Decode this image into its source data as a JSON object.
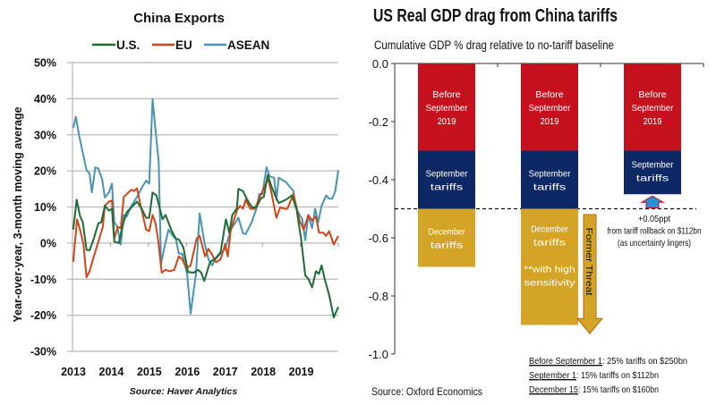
{
  "chart_data": [
    {
      "type": "line",
      "title": "China Exports",
      "ylabel": "Year-over-year, 3-month moving average",
      "xlabel": "",
      "source": "Source: Haver Analytics",
      "xlim": [
        2013,
        2020
      ],
      "ylim": [
        -30,
        50
      ],
      "yticks": [
        "50%",
        "40%",
        "30%",
        "20%",
        "10%",
        "0%",
        "-10%",
        "-20%",
        "-30%"
      ],
      "ytick_values": [
        50,
        40,
        30,
        20,
        10,
        0,
        -10,
        -20,
        -30
      ],
      "xticks": [
        "2013",
        "2014",
        "2015",
        "2016",
        "2017",
        "2018",
        "2019"
      ],
      "xtick_values": [
        2013,
        2014,
        2015,
        2016,
        2017,
        2018,
        2019
      ],
      "grid": true,
      "legend": "top",
      "series": [
        {
          "name": "U.S.",
          "color": "#1e6b35",
          "points": [
            [
              2013.02,
              3.7
            ],
            [
              2013.11,
              12
            ],
            [
              2013.2,
              7.4
            ],
            [
              2013.27,
              5.8
            ],
            [
              2013.37,
              -1.9
            ],
            [
              2013.45,
              -2
            ],
            [
              2013.56,
              1.2
            ],
            [
              2013.68,
              5.5
            ],
            [
              2013.76,
              5.8
            ],
            [
              2013.85,
              10.3
            ],
            [
              2013.96,
              9
            ],
            [
              2014.04,
              9.5
            ],
            [
              2014.1,
              0.4
            ],
            [
              2014.22,
              0
            ],
            [
              2014.31,
              4.5
            ],
            [
              2014.43,
              8.6
            ],
            [
              2014.55,
              9.9
            ],
            [
              2014.7,
              11.5
            ],
            [
              2014.82,
              9.5
            ],
            [
              2014.94,
              7
            ],
            [
              2015.02,
              7
            ],
            [
              2015.11,
              14
            ],
            [
              2015.21,
              13.2
            ],
            [
              2015.37,
              6.6
            ],
            [
              2015.45,
              7.8
            ],
            [
              2015.6,
              3.7
            ],
            [
              2015.72,
              1.2
            ],
            [
              2015.8,
              1
            ],
            [
              2015.92,
              -1.2
            ],
            [
              2016.04,
              -8
            ],
            [
              2016.19,
              -8.2
            ],
            [
              2016.31,
              -7.4
            ],
            [
              2016.39,
              -8.2
            ],
            [
              2016.47,
              -10.5
            ],
            [
              2016.62,
              -5.3
            ],
            [
              2016.78,
              -4.1
            ],
            [
              2016.9,
              -2.5
            ],
            [
              2017.04,
              6.6
            ],
            [
              2017.13,
              2.9
            ],
            [
              2017.21,
              7.8
            ],
            [
              2017.33,
              9.6
            ],
            [
              2017.37,
              15
            ],
            [
              2017.49,
              14.4
            ],
            [
              2017.6,
              12
            ],
            [
              2017.72,
              10
            ],
            [
              2017.84,
              9.9
            ],
            [
              2017.96,
              12.3
            ],
            [
              2018.04,
              12.8
            ],
            [
              2018.14,
              18.9
            ],
            [
              2018.23,
              16
            ],
            [
              2018.35,
              12.8
            ],
            [
              2018.43,
              11.1
            ],
            [
              2018.47,
              11.3
            ],
            [
              2018.62,
              12
            ],
            [
              2018.78,
              13.2
            ],
            [
              2018.9,
              9.5
            ],
            [
              2019.02,
              1.2
            ],
            [
              2019.13,
              -9
            ],
            [
              2019.21,
              -9.9
            ],
            [
              2019.31,
              -12.3
            ],
            [
              2019.41,
              -7.8
            ],
            [
              2019.49,
              -8.5
            ],
            [
              2019.56,
              -6.2
            ],
            [
              2019.64,
              -9.9
            ],
            [
              2019.76,
              -14.4
            ],
            [
              2019.88,
              -20.6
            ],
            [
              2020.0,
              -17.7
            ]
          ]
        },
        {
          "name": "EU",
          "color": "#d0461a",
          "points": [
            [
              2013.02,
              -5.2
            ],
            [
              2013.12,
              6.6
            ],
            [
              2013.21,
              3.3
            ],
            [
              2013.29,
              -0.4
            ],
            [
              2013.37,
              -9.5
            ],
            [
              2013.45,
              -7.8
            ],
            [
              2013.56,
              -3.7
            ],
            [
              2013.68,
              0.4
            ],
            [
              2013.8,
              4.5
            ],
            [
              2013.85,
              10.3
            ],
            [
              2013.96,
              11.5
            ],
            [
              2014.04,
              11.8
            ],
            [
              2014.1,
              1.2
            ],
            [
              2014.19,
              4.5
            ],
            [
              2014.27,
              4.1
            ],
            [
              2014.35,
              12.8
            ],
            [
              2014.47,
              14
            ],
            [
              2014.55,
              14.8
            ],
            [
              2014.62,
              14.4
            ],
            [
              2014.7,
              15.2
            ],
            [
              2014.78,
              11.1
            ],
            [
              2014.94,
              3.7
            ],
            [
              2015.02,
              3.3
            ],
            [
              2015.11,
              7.8
            ],
            [
              2015.19,
              5.3
            ],
            [
              2015.25,
              1.2
            ],
            [
              2015.35,
              -8.2
            ],
            [
              2015.45,
              -7.4
            ],
            [
              2015.56,
              -7.8
            ],
            [
              2015.68,
              -7.4
            ],
            [
              2015.8,
              -3.7
            ],
            [
              2015.89,
              -4.5
            ],
            [
              2016.0,
              -7
            ],
            [
              2016.11,
              -6.2
            ],
            [
              2016.27,
              1.2
            ],
            [
              2016.35,
              2
            ],
            [
              2016.49,
              -3.7
            ],
            [
              2016.58,
              -1.6
            ],
            [
              2016.66,
              -2.9
            ],
            [
              2016.78,
              -5.3
            ],
            [
              2016.9,
              -4.5
            ],
            [
              2017.02,
              -0.4
            ],
            [
              2017.09,
              -3.7
            ],
            [
              2017.17,
              3.7
            ],
            [
              2017.33,
              9
            ],
            [
              2017.41,
              10.3
            ],
            [
              2017.49,
              9.5
            ],
            [
              2017.56,
              12
            ],
            [
              2017.68,
              9.5
            ],
            [
              2017.8,
              9.5
            ],
            [
              2017.92,
              12.3
            ],
            [
              2018.07,
              16
            ],
            [
              2018.15,
              17.7
            ],
            [
              2018.23,
              14.4
            ],
            [
              2018.37,
              7
            ],
            [
              2018.47,
              9.9
            ],
            [
              2018.58,
              9.5
            ],
            [
              2018.66,
              9.5
            ],
            [
              2018.82,
              13.6
            ],
            [
              2018.98,
              6.2
            ],
            [
              2019.09,
              3.7
            ],
            [
              2019.21,
              7.8
            ],
            [
              2019.31,
              6.2
            ],
            [
              2019.41,
              7.4
            ],
            [
              2019.49,
              2.9
            ],
            [
              2019.6,
              2.9
            ],
            [
              2019.68,
              2
            ],
            [
              2019.76,
              3.3
            ],
            [
              2019.88,
              -0.4
            ],
            [
              2020.0,
              2
            ]
          ]
        },
        {
          "name": "ASEAN",
          "color": "#4a93b3",
          "points": [
            [
              2013.02,
              31.9
            ],
            [
              2013.09,
              35
            ],
            [
              2013.17,
              30
            ],
            [
              2013.37,
              20.2
            ],
            [
              2013.45,
              19.3
            ],
            [
              2013.51,
              14
            ],
            [
              2013.6,
              21
            ],
            [
              2013.68,
              20.6
            ],
            [
              2013.78,
              17.7
            ],
            [
              2013.85,
              12.6
            ],
            [
              2013.96,
              14
            ],
            [
              2014.04,
              16.5
            ],
            [
              2014.1,
              5.8
            ],
            [
              2014.18,
              4.5
            ],
            [
              2014.27,
              -0.4
            ],
            [
              2014.35,
              7.8
            ],
            [
              2014.43,
              7.4
            ],
            [
              2014.55,
              10.3
            ],
            [
              2014.7,
              12.8
            ],
            [
              2014.82,
              15.2
            ],
            [
              2014.94,
              17.3
            ],
            [
              2015.02,
              16.5
            ],
            [
              2015.11,
              39.9
            ],
            [
              2015.19,
              30.9
            ],
            [
              2015.27,
              22.6
            ],
            [
              2015.33,
              -5.8
            ],
            [
              2015.42,
              -1.2
            ],
            [
              2015.53,
              3.7
            ],
            [
              2015.64,
              2
            ],
            [
              2015.72,
              1.2
            ],
            [
              2015.8,
              -2.9
            ],
            [
              2015.89,
              -2.9
            ],
            [
              2016.02,
              -8.6
            ],
            [
              2016.11,
              -19.5
            ],
            [
              2016.25,
              -8.6
            ],
            [
              2016.35,
              8.2
            ],
            [
              2016.47,
              0.4
            ],
            [
              2016.58,
              -4.5
            ],
            [
              2016.68,
              -6.2
            ],
            [
              2016.76,
              -4.5
            ],
            [
              2016.9,
              -2.9
            ],
            [
              2017.02,
              -1.6
            ],
            [
              2017.17,
              3.7
            ],
            [
              2017.37,
              7
            ],
            [
              2017.49,
              2.7
            ],
            [
              2017.56,
              2.5
            ],
            [
              2017.72,
              5.8
            ],
            [
              2017.84,
              9.5
            ],
            [
              2017.92,
              13.6
            ],
            [
              2018.0,
              13.6
            ],
            [
              2018.11,
              21
            ],
            [
              2018.19,
              18.5
            ],
            [
              2018.31,
              18.1
            ],
            [
              2018.37,
              12
            ],
            [
              2018.43,
              18.1
            ],
            [
              2018.62,
              16.9
            ],
            [
              2018.82,
              14.4
            ],
            [
              2018.86,
              10.3
            ],
            [
              2018.98,
              7.8
            ],
            [
              2019.05,
              6.6
            ],
            [
              2019.13,
              0.8
            ],
            [
              2019.21,
              7.8
            ],
            [
              2019.31,
              4.1
            ],
            [
              2019.39,
              9.5
            ],
            [
              2019.47,
              5.8
            ],
            [
              2019.56,
              10.3
            ],
            [
              2019.68,
              13.2
            ],
            [
              2019.76,
              12.3
            ],
            [
              2019.84,
              12.3
            ],
            [
              2019.92,
              14.4
            ],
            [
              2020.0,
              20.2
            ]
          ]
        }
      ]
    },
    {
      "type": "bar",
      "stacked": true,
      "title": "US Real GDP drag from China tariffs",
      "subtitle": "Cumulative GDP % drag relative to no-tariff baseline",
      "source": "Source: Oxford Economics",
      "ylim": [
        -1.0,
        0.0
      ],
      "yticks": [
        "0.0",
        "-0.2",
        "-0.4",
        "-0.6",
        "-0.8",
        "-1.0"
      ],
      "ytick_values": [
        0,
        -0.2,
        -0.4,
        -0.6,
        -0.8,
        -1.0
      ],
      "reference_line": -0.5,
      "colors": {
        "before": "#c5111d",
        "september": "#0e2866",
        "december": "#d3a425",
        "annotation": "#2b8fd2",
        "threat_arrow": "#d3a425"
      },
      "bars": [
        {
          "segments": [
            {
              "key": "before",
              "value": -0.3,
              "label": [
                "Before",
                "September",
                "2019"
              ]
            },
            {
              "key": "september",
              "value": -0.2,
              "label": [
                "September",
                "tariffs"
              ]
            },
            {
              "key": "december",
              "value": -0.2,
              "label": [
                "December",
                "tariffs"
              ]
            }
          ]
        },
        {
          "segments": [
            {
              "key": "before",
              "value": -0.3,
              "label": [
                "Before",
                "September",
                "2019"
              ]
            },
            {
              "key": "september",
              "value": -0.2,
              "label": [
                "September",
                "tariffs"
              ]
            },
            {
              "key": "december",
              "value": -0.4,
              "label": [
                "December",
                "tariffs",
                "",
                "**with high",
                "sensitivity"
              ]
            }
          ]
        },
        {
          "segments": [
            {
              "key": "before",
              "value": -0.3,
              "label": [
                "Before",
                "September",
                "2019"
              ]
            },
            {
              "key": "september",
              "value": -0.15,
              "label": [
                "September",
                "tariffs"
              ]
            }
          ]
        }
      ],
      "annotations": {
        "former_threat": "Former Threat",
        "rollback": [
          "+0.05ppt",
          "from tariff rollback on $112bn",
          "(as uncertainty lingers)"
        ]
      },
      "notes": [
        {
          "term": "Before September 1",
          "text": ": 25% tariffs on $250bn"
        },
        {
          "term": "September 1",
          "text": ": 15% tariffs on $112bn"
        },
        {
          "term": "December 15",
          "text": ": 15% tariffs on $160bn"
        }
      ]
    }
  ]
}
